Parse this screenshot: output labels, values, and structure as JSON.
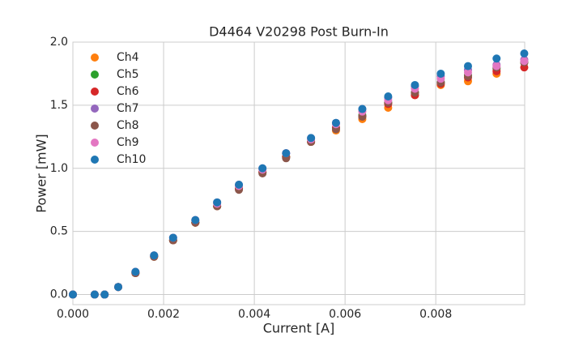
{
  "chart_data": {
    "type": "scatter",
    "title": "D4464 V20298 Post Burn-In",
    "xlabel": "Current [A]",
    "ylabel": "Power [mW]",
    "x": [
      0,
      0.00048,
      0.0007,
      0.001,
      0.00138,
      0.00179,
      0.00221,
      0.0027,
      0.00318,
      0.00366,
      0.00418,
      0.0047,
      0.00525,
      0.0058,
      0.00638,
      0.00695,
      0.00754,
      0.00811,
      0.00871,
      0.00934,
      0.00995
    ],
    "series": [
      {
        "name": "Ch4",
        "color": "#ff7f0e",
        "values": [
          0,
          0,
          0,
          0.06,
          0.17,
          0.3,
          0.43,
          0.57,
          0.7,
          0.84,
          0.97,
          1.09,
          1.21,
          1.3,
          1.39,
          1.48,
          1.58,
          1.66,
          1.69,
          1.75,
          1.84
        ]
      },
      {
        "name": "Ch5",
        "color": "#2ca02c",
        "values": [
          0,
          0,
          0,
          0.06,
          0.17,
          0.3,
          0.43,
          0.57,
          0.7,
          0.84,
          0.97,
          1.09,
          1.21,
          1.32,
          1.42,
          1.52,
          1.6,
          1.68,
          1.74,
          1.79,
          1.84
        ]
      },
      {
        "name": "Ch6",
        "color": "#d62728",
        "values": [
          0,
          0,
          0,
          0.06,
          0.17,
          0.3,
          0.43,
          0.57,
          0.7,
          0.84,
          0.97,
          1.09,
          1.21,
          1.32,
          1.41,
          1.51,
          1.58,
          1.67,
          1.72,
          1.77,
          1.8
        ]
      },
      {
        "name": "Ch7",
        "color": "#9467bd",
        "values": [
          0,
          0,
          0,
          0.06,
          0.18,
          0.31,
          0.45,
          0.59,
          0.73,
          0.87,
          1.0,
          1.12,
          1.24,
          1.36,
          1.47,
          1.56,
          1.65,
          1.73,
          1.78,
          1.82,
          1.86
        ]
      },
      {
        "name": "Ch8",
        "color": "#8c564b",
        "values": [
          0,
          0,
          0,
          0.06,
          0.17,
          0.3,
          0.43,
          0.57,
          0.7,
          0.83,
          0.96,
          1.08,
          1.21,
          1.31,
          1.41,
          1.52,
          1.6,
          1.68,
          1.73,
          1.8,
          1.84
        ]
      },
      {
        "name": "Ch9",
        "color": "#e377c2",
        "values": [
          0,
          0,
          0,
          0.06,
          0.18,
          0.31,
          0.45,
          0.59,
          0.72,
          0.86,
          0.99,
          1.12,
          1.23,
          1.35,
          1.45,
          1.54,
          1.63,
          1.71,
          1.76,
          1.81,
          1.85
        ]
      },
      {
        "name": "Ch10",
        "color": "#1f77b4",
        "values": [
          0,
          0,
          0,
          0.06,
          0.18,
          0.31,
          0.45,
          0.59,
          0.73,
          0.87,
          1.0,
          1.12,
          1.24,
          1.36,
          1.47,
          1.57,
          1.66,
          1.75,
          1.81,
          1.87,
          1.91
        ]
      }
    ],
    "xlim": [
      0,
      0.00996
    ],
    "ylim": [
      -0.08,
      2.0
    ],
    "xticks": [
      {
        "value": 0,
        "label": "0.000"
      },
      0.002,
      0.004,
      0.006,
      0.008
    ],
    "yticks": [
      {
        "value": 0,
        "label": "0.0"
      },
      0.5,
      {
        "value": 1,
        "label": "1.0"
      },
      1.5,
      {
        "value": 2,
        "label": "2.0"
      }
    ],
    "grid": true,
    "legend": "upper left"
  }
}
